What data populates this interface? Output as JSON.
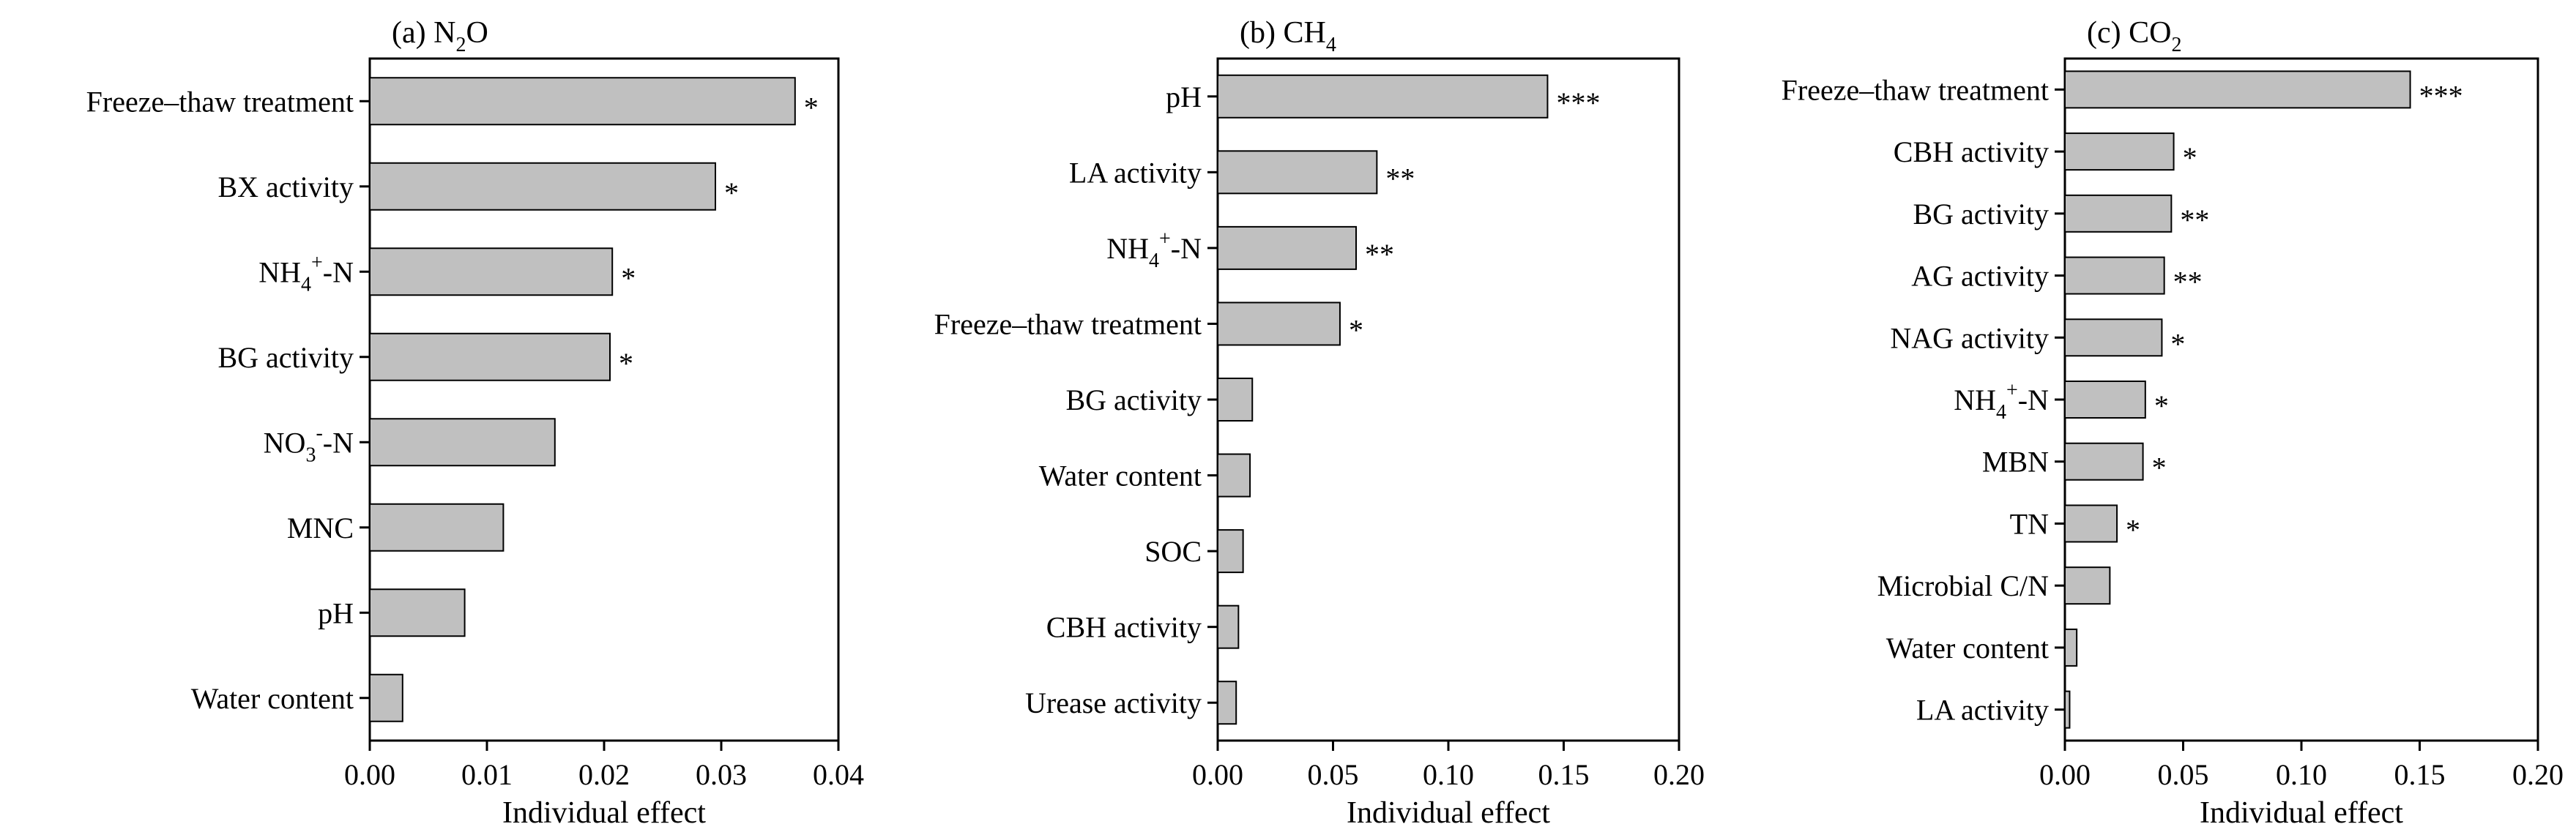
{
  "chart_data": [
    {
      "type": "bar",
      "orientation": "horizontal",
      "title": "(a) N2O",
      "title_parts": [
        {
          "text": "(a) N"
        },
        {
          "text": "2",
          "sub": true
        },
        {
          "text": "O"
        }
      ],
      "xlabel": "Individual effect",
      "xlim": [
        0,
        0.04
      ],
      "xticks": [
        "0.00",
        "0.01",
        "0.02",
        "0.03",
        "0.04"
      ],
      "bar_color": "#c0c0c0",
      "categories": [
        {
          "label": "Freeze–thaw treatment",
          "value": 0.0363,
          "sig": "*"
        },
        {
          "label": "BX activity",
          "value": 0.0295,
          "sig": "*"
        },
        {
          "label": "NH4+-N",
          "parts": [
            {
              "text": "NH"
            },
            {
              "text": "4",
              "sub": true
            },
            {
              "text": "+",
              "sup": true
            },
            {
              "text": "-N"
            }
          ],
          "value": 0.0207,
          "sig": "*"
        },
        {
          "label": "BG activity",
          "value": 0.0205,
          "sig": "*"
        },
        {
          "label": "NO3−-N",
          "parts": [
            {
              "text": "NO"
            },
            {
              "text": "3",
              "sub": true
            },
            {
              "text": "-",
              "sup": true
            },
            {
              "text": "-N"
            }
          ],
          "value": 0.0158,
          "sig": ""
        },
        {
          "label": "MNC",
          "value": 0.0114,
          "sig": ""
        },
        {
          "label": "pH",
          "value": 0.0081,
          "sig": ""
        },
        {
          "label": "Water content",
          "value": 0.0028,
          "sig": ""
        }
      ]
    },
    {
      "type": "bar",
      "orientation": "horizontal",
      "title": "(b) CH4",
      "title_parts": [
        {
          "text": "(b) CH"
        },
        {
          "text": "4",
          "sub": true
        }
      ],
      "xlabel": "Individual effect",
      "xlim": [
        0,
        0.2
      ],
      "xticks": [
        "0.00",
        "0.05",
        "0.10",
        "0.15",
        "0.20"
      ],
      "bar_color": "#c0c0c0",
      "categories": [
        {
          "label": "pH",
          "value": 0.143,
          "sig": "***"
        },
        {
          "label": "LA activity",
          "value": 0.069,
          "sig": "**"
        },
        {
          "label": "NH4+-N",
          "parts": [
            {
              "text": "NH"
            },
            {
              "text": "4",
              "sub": true
            },
            {
              "text": "+",
              "sup": true
            },
            {
              "text": "-N"
            }
          ],
          "value": 0.06,
          "sig": "**"
        },
        {
          "label": "Freeze–thaw treatment",
          "value": 0.053,
          "sig": "*"
        },
        {
          "label": "BG activity",
          "value": 0.015,
          "sig": ""
        },
        {
          "label": "Water content",
          "value": 0.014,
          "sig": ""
        },
        {
          "label": "SOC",
          "value": 0.011,
          "sig": ""
        },
        {
          "label": "CBH activity",
          "value": 0.009,
          "sig": ""
        },
        {
          "label": "Urease activity",
          "value": 0.008,
          "sig": ""
        }
      ]
    },
    {
      "type": "bar",
      "orientation": "horizontal",
      "title": "(c) CO2",
      "title_parts": [
        {
          "text": "(c) CO"
        },
        {
          "text": "2",
          "sub": true
        }
      ],
      "xlabel": "Individual effect",
      "xlim": [
        0,
        0.2
      ],
      "xticks": [
        "0.00",
        "0.05",
        "0.10",
        "0.15",
        "0.20"
      ],
      "bar_color": "#c0c0c0",
      "categories": [
        {
          "label": "Freeze–thaw treatment",
          "value": 0.146,
          "sig": "***"
        },
        {
          "label": "CBH activity",
          "value": 0.046,
          "sig": "*"
        },
        {
          "label": "BG activity",
          "value": 0.045,
          "sig": "**"
        },
        {
          "label": "AG activity",
          "value": 0.042,
          "sig": "**"
        },
        {
          "label": "NAG activity",
          "value": 0.041,
          "sig": "*"
        },
        {
          "label": "NH4+-N",
          "parts": [
            {
              "text": "NH"
            },
            {
              "text": "4",
              "sub": true
            },
            {
              "text": "+",
              "sup": true
            },
            {
              "text": "-N"
            }
          ],
          "value": 0.034,
          "sig": "*"
        },
        {
          "label": "MBN",
          "value": 0.033,
          "sig": "*"
        },
        {
          "label": "TN",
          "value": 0.022,
          "sig": "*"
        },
        {
          "label": "Microbial C/N",
          "value": 0.019,
          "sig": ""
        },
        {
          "label": "Water content",
          "value": 0.005,
          "sig": ""
        },
        {
          "label": "LA activity",
          "value": 0.002,
          "sig": ""
        }
      ]
    }
  ]
}
